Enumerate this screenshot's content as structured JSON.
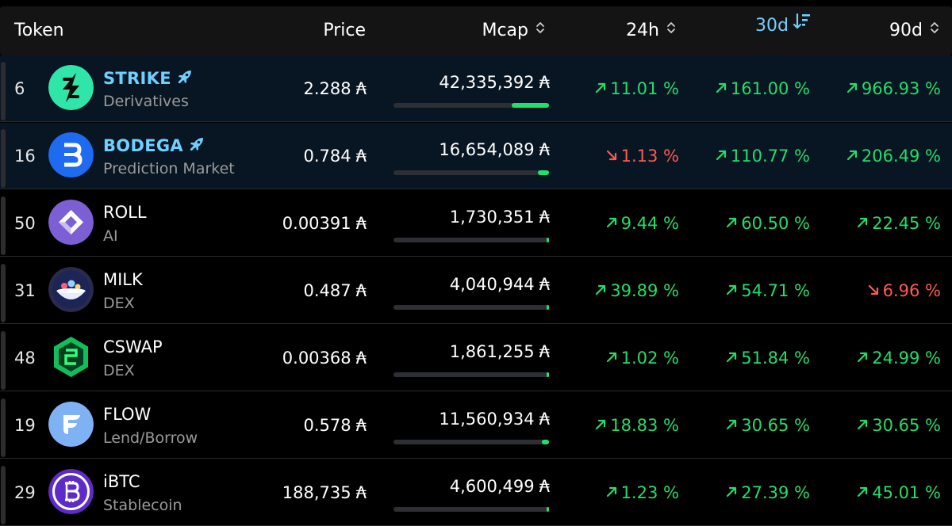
{
  "header": {
    "token": "Token",
    "price": "Price",
    "mcap": "Mcap",
    "d24h": "24h",
    "d30d": "30d",
    "d90d": "90d"
  },
  "currency_symbol": "₳",
  "colors": {
    "up": "#22dd6a",
    "down": "#ff5a4f",
    "accent": "#6fd0ff",
    "highlight_bg": "#081522"
  },
  "rows": [
    {
      "rank": "6",
      "name": "STRIKE",
      "category": "Derivatives",
      "price": "2.288",
      "mcap": "42,335,392",
      "mcap_bar": 0.24,
      "d24h": "11.01 %",
      "d24h_dir": "up",
      "d30d": "161.00 %",
      "d30d_dir": "up",
      "d90d": "966.93 %",
      "d90d_dir": "up",
      "highlight": true,
      "logo_icon": "strike-logo-icon"
    },
    {
      "rank": "16",
      "name": "BODEGA",
      "category": "Prediction Market",
      "price": "0.784",
      "mcap": "16,654,089",
      "mcap_bar": 0.07,
      "d24h": "1.13 %",
      "d24h_dir": "down",
      "d30d": "110.77 %",
      "d30d_dir": "up",
      "d90d": "206.49 %",
      "d90d_dir": "up",
      "highlight": true,
      "logo_icon": "bodega-logo-icon"
    },
    {
      "rank": "50",
      "name": "ROLL",
      "category": "AI",
      "price": "0.00391",
      "mcap": "1,730,351",
      "mcap_bar": 0.008,
      "d24h": "9.44 %",
      "d24h_dir": "up",
      "d30d": "60.50 %",
      "d30d_dir": "up",
      "d90d": "22.45 %",
      "d90d_dir": "up",
      "highlight": false,
      "logo_icon": "roll-logo-icon"
    },
    {
      "rank": "31",
      "name": "MILK",
      "category": "DEX",
      "price": "0.487",
      "mcap": "4,040,944",
      "mcap_bar": 0.012,
      "d24h": "39.89 %",
      "d24h_dir": "up",
      "d30d": "54.71 %",
      "d30d_dir": "up",
      "d90d": "6.96 %",
      "d90d_dir": "down",
      "highlight": false,
      "logo_icon": "milk-logo-icon"
    },
    {
      "rank": "48",
      "name": "CSWAP",
      "category": "DEX",
      "price": "0.00368",
      "mcap": "1,861,255",
      "mcap_bar": 0.008,
      "d24h": "1.02 %",
      "d24h_dir": "up",
      "d30d": "51.84 %",
      "d30d_dir": "up",
      "d90d": "24.99 %",
      "d90d_dir": "up",
      "highlight": false,
      "logo_icon": "cswap-logo-icon"
    },
    {
      "rank": "19",
      "name": "FLOW",
      "category": "Lend/Borrow",
      "price": "0.578",
      "mcap": "11,560,934",
      "mcap_bar": 0.045,
      "d24h": "18.83 %",
      "d24h_dir": "up",
      "d30d": "30.65 %",
      "d30d_dir": "up",
      "d90d": "30.65 %",
      "d90d_dir": "up",
      "highlight": false,
      "logo_icon": "flow-logo-icon"
    },
    {
      "rank": "29",
      "name": "iBTC",
      "category": "Stablecoin",
      "price": "188,735",
      "mcap": "4,600,499",
      "mcap_bar": 0.012,
      "d24h": "1.23 %",
      "d24h_dir": "up",
      "d30d": "27.39 %",
      "d30d_dir": "up",
      "d90d": "45.01 %",
      "d90d_dir": "up",
      "highlight": false,
      "logo_icon": "ibtc-logo-icon"
    }
  ]
}
